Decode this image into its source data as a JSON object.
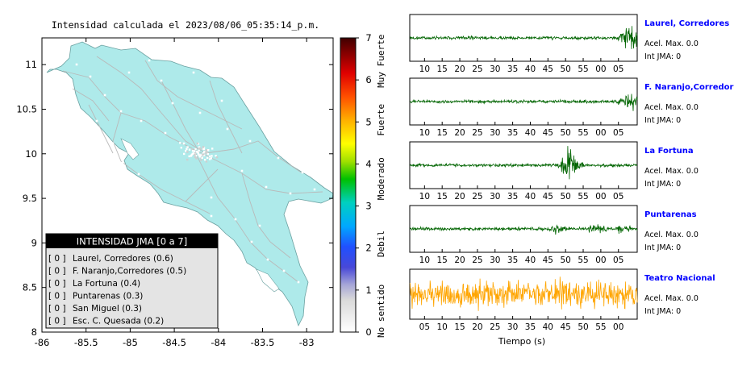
{
  "title": "Intensidad calculada el 2023/08/06_05:35:14_p.m.",
  "colors": {
    "land": "#aeeaea",
    "land_stroke": "#6aa0a0",
    "roads": "#b9b9b9",
    "legend_header_bg": "#000000",
    "legend_body_bg": "#e4e4e4",
    "trace_green": "#006400",
    "trace_orange": "#ffa500",
    "station_name": "#0000ff"
  },
  "map": {
    "lon_ticks": [
      "-86",
      "-85.5",
      "-85",
      "-84.5",
      "-84",
      "-83.5",
      "-83"
    ],
    "lat_ticks": [
      "11",
      "10.5",
      "10",
      "9.5",
      "9",
      "8.5",
      "8"
    ],
    "lon_range": [
      -86,
      -82.7
    ],
    "lat_range": [
      8,
      11.3
    ]
  },
  "colorbar": {
    "ticks": [
      "0",
      "1",
      "2",
      "3",
      "4",
      "5",
      "6",
      "7"
    ],
    "categories": [
      "No sentido",
      "Debil",
      "Moderado",
      "Fuerte",
      "Muy Fuerte"
    ],
    "range": [
      0,
      7
    ]
  },
  "legend": {
    "header": "INTENSIDAD JMA [0 a 7]",
    "items": [
      {
        "intensity": "[ 0 ]",
        "label": "Laurel, Corredores (0.6)"
      },
      {
        "intensity": "[ 0 ]",
        "label": "F. Naranjo,Corredores (0.5)"
      },
      {
        "intensity": "[ 0 ]",
        "label": "La Fortuna (0.4)"
      },
      {
        "intensity": "[ 0 ]",
        "label": "Puntarenas (0.3)"
      },
      {
        "intensity": "[ 0 ]",
        "label": "San Miguel (0.3)"
      },
      {
        "intensity": "[ 0 ]",
        "label": "Esc. C. Quesada (0.2)"
      }
    ]
  },
  "chart_data": {
    "type": "line",
    "xlabel": "Tiempo (s)",
    "x_ticks": [
      "10",
      "15",
      "20",
      "25",
      "30",
      "35",
      "40",
      "45",
      "50",
      "55",
      "00",
      "05"
    ],
    "x_ticks_last": [
      "05",
      "10",
      "15",
      "20",
      "25",
      "30",
      "35",
      "40",
      "45",
      "50",
      "55",
      "00"
    ],
    "series": [
      {
        "name": "Laurel, Corredores",
        "accel": "Acel. Max. 0.0",
        "jma": "Int JMA: 0",
        "color": "green",
        "bursts": [
          [
            0.97,
            12
          ]
        ]
      },
      {
        "name": "F. Naranjo,Corredores",
        "accel": "Acel. Max. 0.0",
        "jma": "Int JMA: 0",
        "color": "green",
        "bursts": [
          [
            0.97,
            10
          ]
        ]
      },
      {
        "name": "La Fortuna",
        "accel": "Acel. Max. 0.0",
        "jma": "Int JMA: 0",
        "color": "green",
        "bursts": [
          [
            0.7,
            8
          ],
          [
            0.71,
            7
          ]
        ]
      },
      {
        "name": "Puntarenas",
        "accel": "Acel. Max. 0.0",
        "jma": "Int JMA: 0",
        "color": "green",
        "bursts": [
          [
            0.64,
            4
          ],
          [
            0.82,
            4
          ],
          [
            0.94,
            4
          ]
        ]
      },
      {
        "name": "Teatro Nacional",
        "accel": "Acel. Max. 0.0",
        "jma": "Int JMA: 0",
        "color": "orange",
        "bursts": []
      }
    ]
  }
}
